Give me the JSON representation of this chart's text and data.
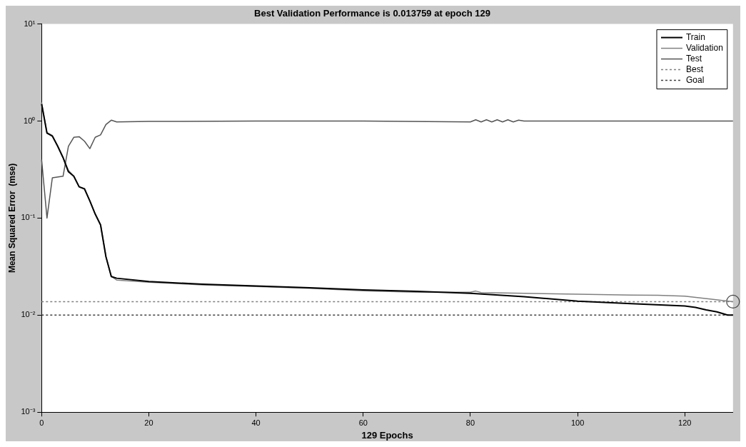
{
  "chart_data": {
    "type": "line",
    "title": "Best Validation Performance is 0.013759 at epoch 129",
    "xlabel": "129 Epochs",
    "ylabel": "Mean Squared Error  (mse)",
    "log": "y",
    "xlim": [
      0,
      129
    ],
    "xticks": [
      0,
      20,
      40,
      60,
      80,
      100,
      120
    ],
    "ylim": [
      0.001,
      10
    ],
    "yticks": [
      {
        "value": 0.001,
        "label": "10⁻³"
      },
      {
        "value": 0.01,
        "label": "10⁻²"
      },
      {
        "value": 0.1,
        "label": "10⁻¹"
      },
      {
        "value": 1,
        "label": "10⁰"
      },
      {
        "value": 10,
        "label": "10¹"
      }
    ],
    "grid": false,
    "legend": "top right",
    "series": [
      {
        "name": "Train",
        "color": "#000000",
        "x": [
          0,
          1,
          2,
          3,
          4,
          5,
          6,
          7,
          8,
          9,
          10,
          11,
          12,
          13,
          14,
          20,
          30,
          40,
          50,
          60,
          70,
          80,
          90,
          100,
          110,
          120,
          122,
          124,
          126,
          128,
          129
        ],
        "values": [
          1.5,
          0.75,
          0.7,
          0.55,
          0.42,
          0.3,
          0.27,
          0.21,
          0.2,
          0.15,
          0.11,
          0.085,
          0.04,
          0.025,
          0.024,
          0.0222,
          0.0208,
          0.02,
          0.0191,
          0.0182,
          0.0176,
          0.0168,
          0.0155,
          0.0139,
          0.0131,
          0.0124,
          0.012,
          0.0113,
          0.0108,
          0.01,
          0.01
        ]
      },
      {
        "name": "Validation",
        "color": "#808080",
        "x": [
          0,
          1,
          2,
          3,
          4,
          5,
          6,
          7,
          8,
          9,
          10,
          11,
          12,
          13,
          14,
          20,
          30,
          40,
          50,
          60,
          70,
          80,
          81,
          82,
          90,
          100,
          110,
          115,
          120,
          125,
          129
        ],
        "values": [
          1.55,
          0.76,
          0.71,
          0.55,
          0.42,
          0.31,
          0.27,
          0.21,
          0.2,
          0.15,
          0.11,
          0.085,
          0.04,
          0.025,
          0.023,
          0.0218,
          0.0205,
          0.0197,
          0.0189,
          0.0178,
          0.0172,
          0.0172,
          0.0177,
          0.0171,
          0.0168,
          0.0164,
          0.0161,
          0.016,
          0.0157,
          0.0146,
          0.013759
        ]
      },
      {
        "name": "Test",
        "color": "#555555",
        "x": [
          0,
          1,
          2,
          4,
          5,
          6,
          7,
          8,
          9,
          10,
          11,
          12,
          13,
          14,
          20,
          40,
          60,
          80,
          81,
          82,
          83,
          84,
          85,
          86,
          87,
          88,
          89,
          90,
          100,
          110,
          120,
          129
        ],
        "values": [
          0.4,
          0.1,
          0.26,
          0.27,
          0.55,
          0.68,
          0.69,
          0.62,
          0.52,
          0.68,
          0.72,
          0.92,
          1.02,
          0.98,
          0.99,
          1.0,
          1.0,
          0.98,
          1.03,
          0.98,
          1.03,
          0.98,
          1.03,
          0.98,
          1.03,
          0.98,
          1.02,
          1.0,
          1.0,
          1.0,
          1.0,
          1.0
        ]
      },
      {
        "name": "Best",
        "color": "#808080",
        "line_style": "dashed",
        "x": [
          0,
          129
        ],
        "values": [
          0.013759,
          0.013759
        ]
      },
      {
        "name": "Goal",
        "color": "#404040",
        "line_style": "dashed",
        "x": [
          0,
          129
        ],
        "values": [
          0.01,
          0.01
        ]
      },
      {
        "type": "scatter",
        "marker": "circle",
        "color": "#404040",
        "x": [
          129
        ],
        "values": [
          0.013759
        ]
      }
    ]
  }
}
